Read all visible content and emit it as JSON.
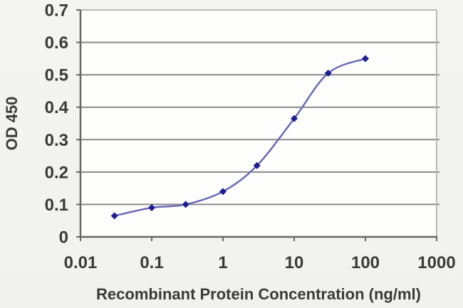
{
  "chart_data": {
    "type": "line",
    "title": "",
    "xlabel": "Recombinant Protein Concentration (ng/ml)",
    "ylabel": "OD 450",
    "x_scale": "log",
    "y_scale": "linear",
    "x": [
      0.03,
      0.1,
      0.3,
      1,
      3,
      10,
      30,
      100
    ],
    "y": [
      0.065,
      0.09,
      0.1,
      0.14,
      0.22,
      0.365,
      0.505,
      0.55
    ],
    "xlim": [
      0.01,
      1000
    ],
    "ylim": [
      0,
      0.7
    ],
    "x_tick_values": [
      0.01,
      0.1,
      1,
      10,
      100,
      1000
    ],
    "x_tick_labels": [
      "0.01",
      "0.1",
      "1",
      "10",
      "100",
      "1000"
    ],
    "y_tick_values": [
      0,
      0.1,
      0.2,
      0.3,
      0.4,
      0.5,
      0.6,
      0.7
    ],
    "y_tick_labels": [
      "0",
      "0.1",
      "0.2",
      "0.3",
      "0.4",
      "0.5",
      "0.6",
      "0.7"
    ],
    "grid": true,
    "legend_position": "none",
    "marker_shape": "diamond",
    "line_smoothing": "spline",
    "colors": {
      "line": "#6b6bb4",
      "marker": "#1e1e90",
      "gridline": "#8a8a8a",
      "axis": "#666666",
      "plot_border": "#b9b9b9",
      "text": "#3a3a3a",
      "plot_background": "#fdfdfc",
      "page_background": "#f2f2f0"
    }
  }
}
